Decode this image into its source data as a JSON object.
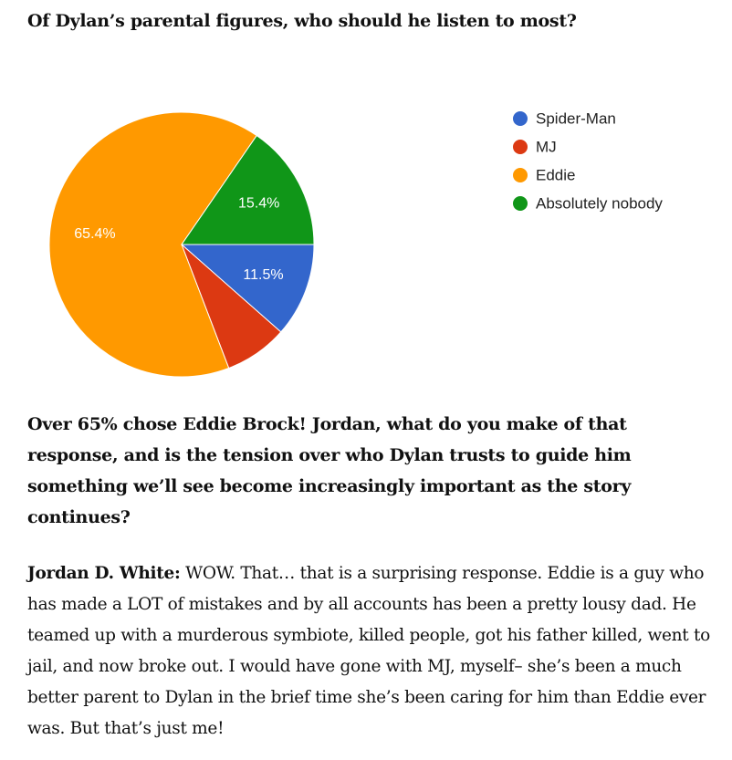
{
  "heading": "Of Dylan’s parental figures, who should he listen to most?",
  "chart_data": {
    "type": "pie",
    "categories": [
      "Spider-Man",
      "MJ",
      "Eddie",
      "Absolutely nobody"
    ],
    "values": [
      11.5,
      7.7,
      65.4,
      15.4
    ],
    "value_labels": [
      "11.5%",
      null,
      "65.4%",
      "15.4%"
    ],
    "colors": [
      "#3366cc",
      "#dc3912",
      "#ff9900",
      "#109618"
    ],
    "legend": "right"
  },
  "question": "Over 65% chose Eddie Brock! Jordan, what do you make of that response, and is the tension over who Dylan trusts to guide him something we’ll see become increasingly important as the story continues?",
  "answer": {
    "speaker": "Jordan D. White:",
    "text": "WOW. That… that is a surprising response. Eddie is a guy who has made a LOT of mistakes and by all accounts has been a pretty lousy dad. He teamed up with a murderous symbiote, killed people, got his father killed, went to jail, and now broke out. I would have gone with MJ, myself– she’s been a much better parent to Dylan in the brief time she’s been caring for him than Eddie ever was. But that’s just me!"
  }
}
